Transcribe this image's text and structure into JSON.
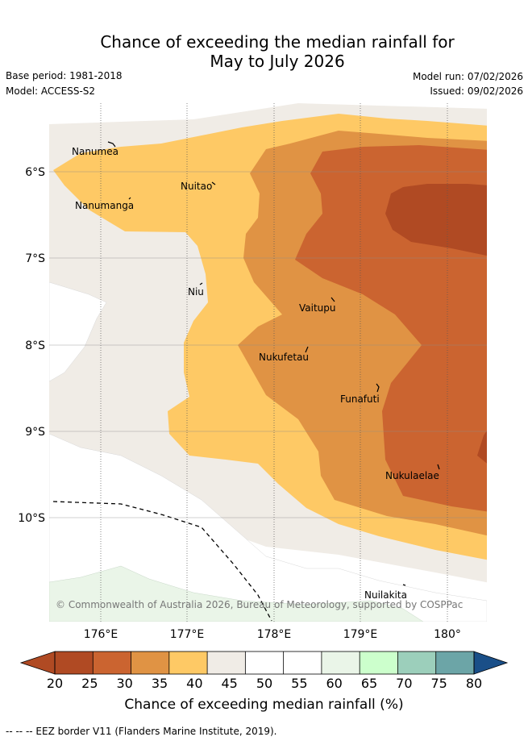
{
  "title_line1": "Chance of exceeding the median rainfall for",
  "title_line2": "May to July 2026",
  "meta": {
    "base_period": "Base period: 1981-2018",
    "model": "Model: ACCESS-S2",
    "model_run": "Model run: 07/02/2026",
    "issued": "Issued: 09/02/2026"
  },
  "lat_ticks": [
    "6°S",
    "7°S",
    "8°S",
    "9°S",
    "10°S"
  ],
  "lon_ticks": [
    "176°E",
    "177°E",
    "178°E",
    "179°E",
    "180°"
  ],
  "places": {
    "nanumea": "Nanumea",
    "nuitao": "Nuitao",
    "nanumanga": "Nanumanga",
    "niu": "Niu",
    "vaitupu": "Vaitupu",
    "nukufetau": "Nukufetau",
    "funafuti": "Funafuti",
    "nukulaelae": "Nukulaelae",
    "nuilakita": "Nuilakita"
  },
  "copyright": "© Commonwealth of Australia 2026, Bureau of Meteorology, supported by COSPPac",
  "colorbar": {
    "ticks": [
      "20",
      "25",
      "30",
      "35",
      "40",
      "45",
      "50",
      "55",
      "60",
      "65",
      "70",
      "75",
      "80"
    ],
    "colors": [
      "#b04a23",
      "#cb6430",
      "#e09344",
      "#fec965",
      "#f0ece6",
      "#ffffff",
      "#ffffff",
      "#eaf5e8",
      "#ccffcc",
      "#9ccfbb",
      "#6ca5a7",
      "#3f7796",
      "#1a4f88"
    ],
    "label": "Chance of exceeding median rainfall (%)"
  },
  "footnote": "--  --  -- EEZ border V11 (Flanders Marine Institute, 2019)."
}
